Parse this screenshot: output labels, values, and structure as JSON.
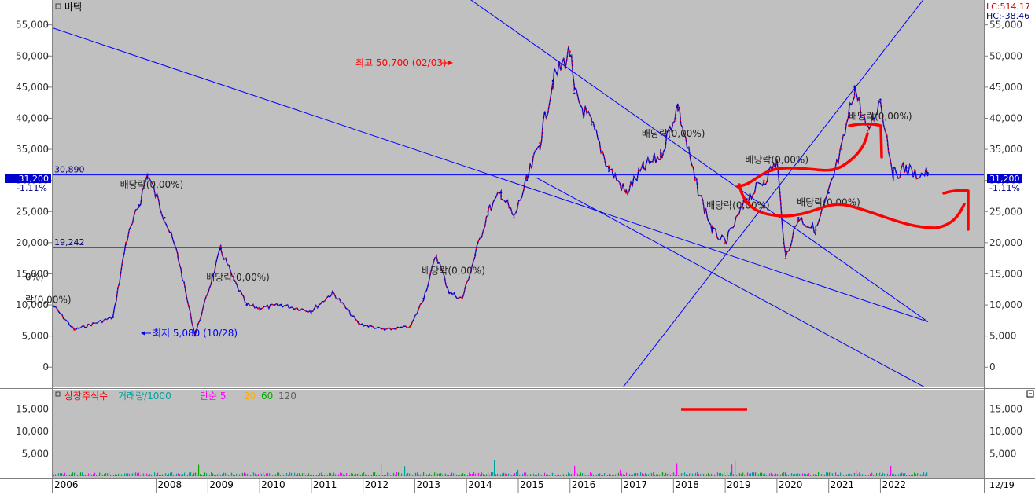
{
  "colors": {
    "plot_bg": "#c0c0c0",
    "panel_bg": "#ffffff",
    "price_up": "#ff0000",
    "price_down": "#0000cc",
    "trendline": "#0000ff",
    "annotation_high": "#ff0000",
    "annotation_low": "#0000ff",
    "freehand": "#ff0000",
    "current_marker": "#0000cc"
  },
  "main_panel": {
    "title": "바텍",
    "indicator_lc": "LC:514.17",
    "indicator_hc": "HC:-38.46",
    "current_price": "31,200",
    "current_change": "-1.11%",
    "high_label": "최고 50,700 (02/03)",
    "low_label": "최저 5,080 (10/28)"
  },
  "volume_panel": {
    "legend": [
      {
        "label": "상장주식수",
        "color": "#ff0000"
      },
      {
        "label": "거래량/1000",
        "color": "#00a0a0"
      },
      {
        "label": "단순 5",
        "color": "#ff00ff"
      },
      {
        "label": "20",
        "color": "#ffaa00"
      },
      {
        "label": "60",
        "color": "#00aa00"
      },
      {
        "label": "120",
        "color": "#606060"
      }
    ],
    "y_ticks": [
      "15,000",
      "10,000",
      "5,000"
    ]
  },
  "x_axis": {
    "labels": [
      "2006",
      "2008",
      "2009",
      "2010",
      "2011",
      "2012",
      "2013",
      "2014",
      "2015",
      "2016",
      "2017",
      "2018",
      "2019",
      "2020",
      "2021",
      "2022"
    ],
    "right_label": "12/19"
  },
  "chart_data": {
    "type": "line",
    "title": "바텍",
    "ylim": [
      -3000,
      59000
    ],
    "y_ticks": [
      "55,000",
      "50,000",
      "45,000",
      "40,000",
      "35,000",
      "30,000",
      "25,000",
      "20,000",
      "15,000",
      "10,000",
      "5,000",
      "0"
    ],
    "y_tick_values": [
      55000,
      50000,
      45000,
      40000,
      35000,
      30000,
      25000,
      20000,
      15000,
      10000,
      5000,
      0
    ],
    "x_labels": [
      "2006",
      "2008",
      "2009",
      "2010",
      "2011",
      "2012",
      "2013",
      "2014",
      "2015",
      "2016",
      "2017",
      "2018",
      "2019",
      "2020",
      "2021",
      "2022"
    ],
    "series": [
      {
        "x": [
          "2006-01",
          "2006-06",
          "2007-03",
          "2007-06",
          "2007-09",
          "2007-11",
          "2008-03",
          "2008-06",
          "2008-10",
          "2009-01",
          "2009-04",
          "2009-07",
          "2009-10",
          "2010-01",
          "2010-06",
          "2011-01",
          "2011-06",
          "2011-12",
          "2012-06",
          "2012-12",
          "2013-03",
          "2013-06",
          "2013-09",
          "2013-12",
          "2014-03",
          "2014-06",
          "2014-09",
          "2014-12",
          "2015-03",
          "2015-06",
          "2015-09",
          "2016-01",
          "2016-02",
          "2016-06",
          "2016-10",
          "2017-02",
          "2017-06",
          "2017-10",
          "2018-02",
          "2018-06",
          "2018-10",
          "2019-01",
          "2019-06",
          "2019-10",
          "2020-01",
          "2020-03",
          "2020-06",
          "2020-10",
          "2021-01",
          "2021-04",
          "2021-07",
          "2021-10",
          "2022-01",
          "2022-04",
          "2022-07",
          "2022-09",
          "2022-12"
        ],
        "y": [
          10000,
          6000,
          8000,
          20000,
          26000,
          31000,
          24000,
          18000,
          5080,
          12000,
          19000,
          14000,
          10000,
          9500,
          10000,
          9000,
          12000,
          7000,
          6000,
          6500,
          11000,
          18000,
          12000,
          11000,
          18000,
          25000,
          28000,
          24000,
          30000,
          36000,
          46000,
          50700,
          44000,
          39000,
          32000,
          28000,
          32000,
          34000,
          42000,
          30000,
          22000,
          20000,
          27000,
          30000,
          33000,
          17500,
          24000,
          22000,
          28000,
          35000,
          45000,
          38000,
          43000,
          31000,
          32000,
          31000,
          31200
        ]
      }
    ],
    "horizontal_lines": [
      {
        "value": 30890,
        "label": "30,890"
      },
      {
        "value": 19242,
        "label": "19,242"
      }
    ],
    "trendlines": [
      {
        "from": [
          "2006-01",
          54500
        ],
        "to": [
          "2022-12",
          7300
        ]
      },
      {
        "from": [
          "2013-12",
          60000
        ],
        "to": [
          "2022-12",
          7300
        ]
      },
      {
        "from": [
          "2017-01",
          -3500
        ],
        "to": [
          "2022-12",
          60000
        ]
      },
      {
        "from": [
          "2015-05",
          30500
        ],
        "to": [
          "2022-12",
          -3500
        ]
      }
    ],
    "annotations": [
      {
        "text": "배당락(0,00%)",
        "x": "2007-11",
        "y": 28800
      },
      {
        "text": "0%)",
        "x": "2006-01",
        "y": 14000
      },
      {
        "text": "락(0,00%)",
        "x": "2006-01",
        "y": 10300
      },
      {
        "text": "배당락(0,00%)",
        "x": "2009-07",
        "y": 13900
      },
      {
        "text": "배당락(0,00%)",
        "x": "2013-09",
        "y": 15000
      },
      {
        "text": "배당락(0,00%)",
        "x": "2017-12",
        "y": 37000
      },
      {
        "text": "배당락(0,00%)",
        "x": "2019-12",
        "y": 32800
      },
      {
        "text": "배당락(0,00%)",
        "x": "2019-03",
        "y": 25500
      },
      {
        "text": "배당락(0,00%)",
        "x": "2020-12",
        "y": 26000
      },
      {
        "text": "배당락(0,00%)",
        "x": "2021-12",
        "y": 39800
      }
    ]
  }
}
